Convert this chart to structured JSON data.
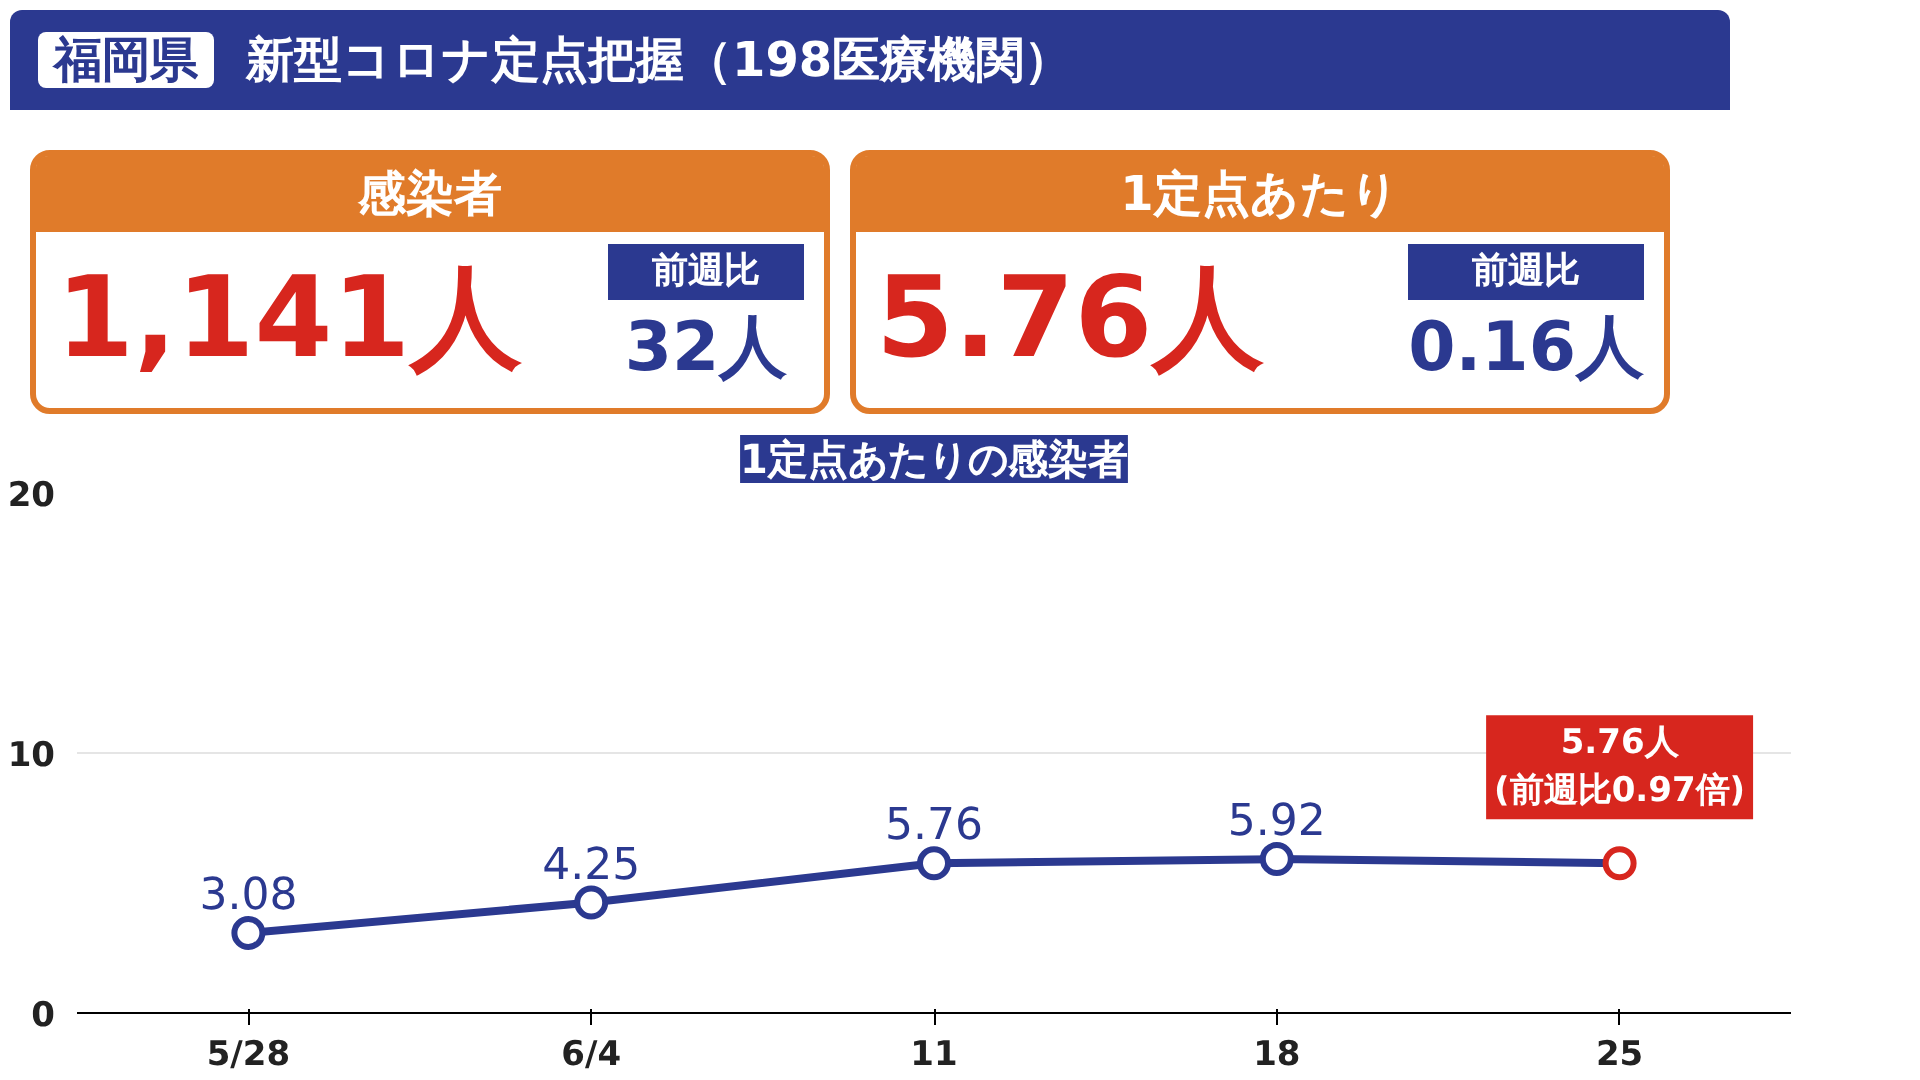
{
  "chart_data": {
    "type": "line",
    "title": "1定点あたりの感染者",
    "annotations": [
      "福岡県",
      "新型コロナ定点把握（198医療機関）",
      "感染者",
      "1,141人",
      "前週比",
      "32人",
      "1定点あたり",
      "5.76人",
      "前週比",
      "0.16人",
      {
        "text": "(前週比0.97倍)",
        "x": "25",
        "y": 5.76
      }
    ],
    "categories": [
      "5/28",
      "6/4",
      "11",
      "18",
      "25"
    ],
    "series": [
      {
        "color": "#2b3990",
        "colors": [
          "#2b3990",
          "#2b3990",
          "#2b3990",
          "#2b3990",
          "#d7261e"
        ],
        "values": [
          3.08,
          4.25,
          5.76,
          5.92,
          5.76
        ],
        "value_labels": [
          "3.08",
          "4.25",
          "5.76",
          "5.92",
          "5.76人"
        ]
      }
    ],
    "ylim": [
      0,
      20
    ],
    "yticks": [
      0,
      10,
      20
    ],
    "grid": "y",
    "marker": "circle",
    "line_style": "solid"
  }
}
